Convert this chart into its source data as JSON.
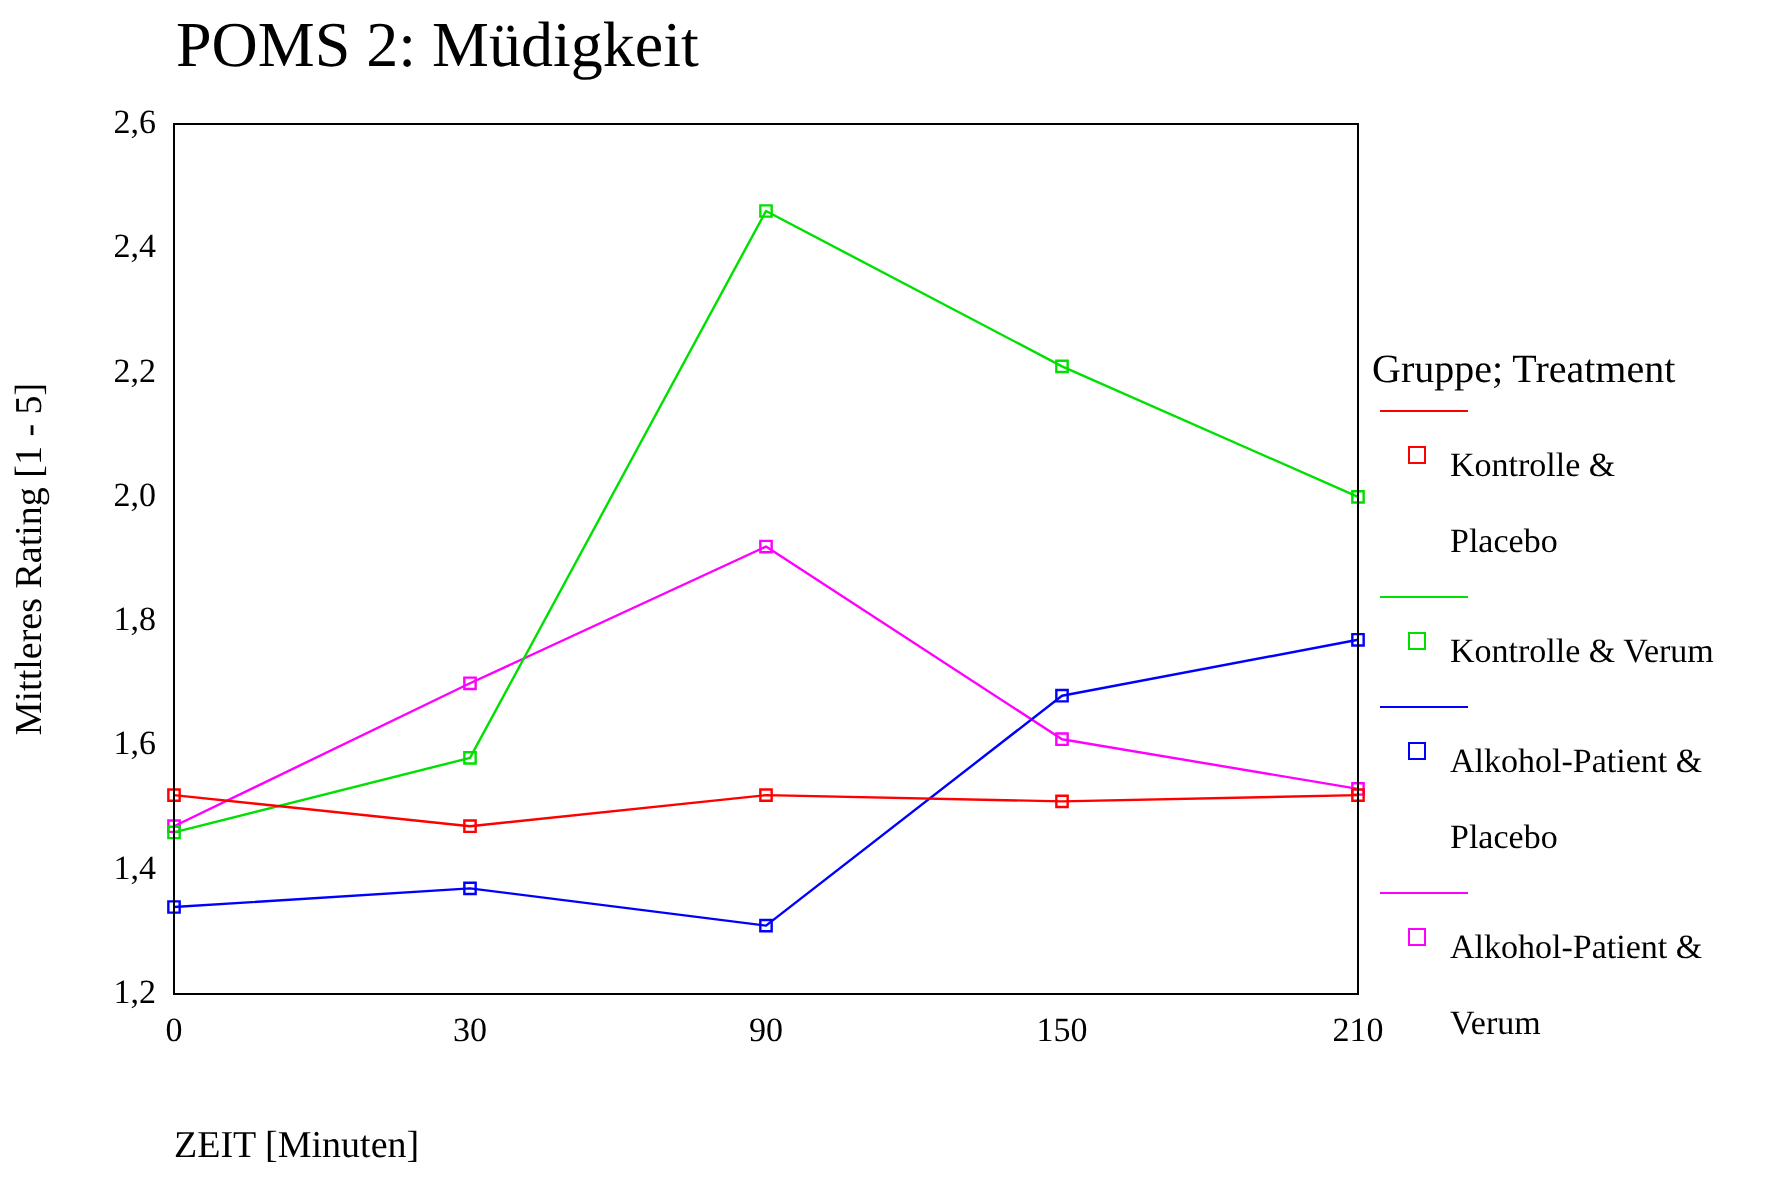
{
  "chart_data": {
    "type": "line",
    "title": "POMS 2: Müdigkeit",
    "xlabel": "ZEIT [Minuten]",
    "ylabel": "Mittleres Rating [1 - 5]",
    "legend_title": "Gruppe; Treatment",
    "categories": [
      "0",
      "30",
      "90",
      "150",
      "210"
    ],
    "series": [
      {
        "name": "Kontrolle & Placebo",
        "color": "#ff0000",
        "values": [
          1.52,
          1.47,
          1.52,
          1.51,
          1.52
        ]
      },
      {
        "name": "Kontrolle & Verum",
        "color": "#00e000",
        "values": [
          1.46,
          1.58,
          2.46,
          2.21,
          2.0
        ]
      },
      {
        "name": "Alkohol-Patient & Placebo",
        "color": "#0000ff",
        "values": [
          1.34,
          1.37,
          1.31,
          1.68,
          1.77
        ]
      },
      {
        "name": "Alkohol-Patient & Verum",
        "color": "#ff00ff",
        "values": [
          1.47,
          1.7,
          1.92,
          1.61,
          1.53
        ]
      }
    ],
    "ylim": [
      1.2,
      2.6
    ],
    "yticks": [
      {
        "value": 1.2,
        "label": "1,2"
      },
      {
        "value": 1.4,
        "label": "1,4"
      },
      {
        "value": 1.6,
        "label": "1,6"
      },
      {
        "value": 1.8,
        "label": "1,8"
      },
      {
        "value": 2.0,
        "label": "2,0"
      },
      {
        "value": 2.2,
        "label": "2,2"
      },
      {
        "value": 2.4,
        "label": "2,4"
      },
      {
        "value": 2.6,
        "label": "2,6"
      }
    ],
    "grid": false,
    "legend": "right",
    "marker": "square",
    "line_style": "solid"
  }
}
